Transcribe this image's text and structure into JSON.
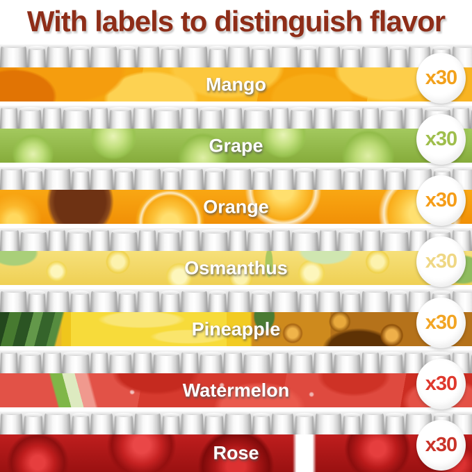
{
  "title": "With labels to distinguish flavor",
  "title_color": "#8E2D18",
  "rows": [
    {
      "label": "Mango",
      "count": "x30",
      "count_color": "#F2A11C",
      "theme": "mango"
    },
    {
      "label": "Grape",
      "count": "x30",
      "count_color": "#9FBE4C",
      "theme": "grape"
    },
    {
      "label": "Orange",
      "count": "x30",
      "count_color": "#F59D18",
      "theme": "orange"
    },
    {
      "label": "Osmanthus",
      "count": "x30",
      "count_color": "#EFD784",
      "theme": "osmanthus"
    },
    {
      "label": "Pineapple",
      "count": "x30",
      "count_color": "#F2A524",
      "theme": "pineapple"
    },
    {
      "label": "Watermelon",
      "count": "x30",
      "count_color": "#DF382D",
      "theme": "watermelon"
    },
    {
      "label": "Rose",
      "count": "x30",
      "count_color": "#C93329",
      "theme": "rose"
    }
  ]
}
